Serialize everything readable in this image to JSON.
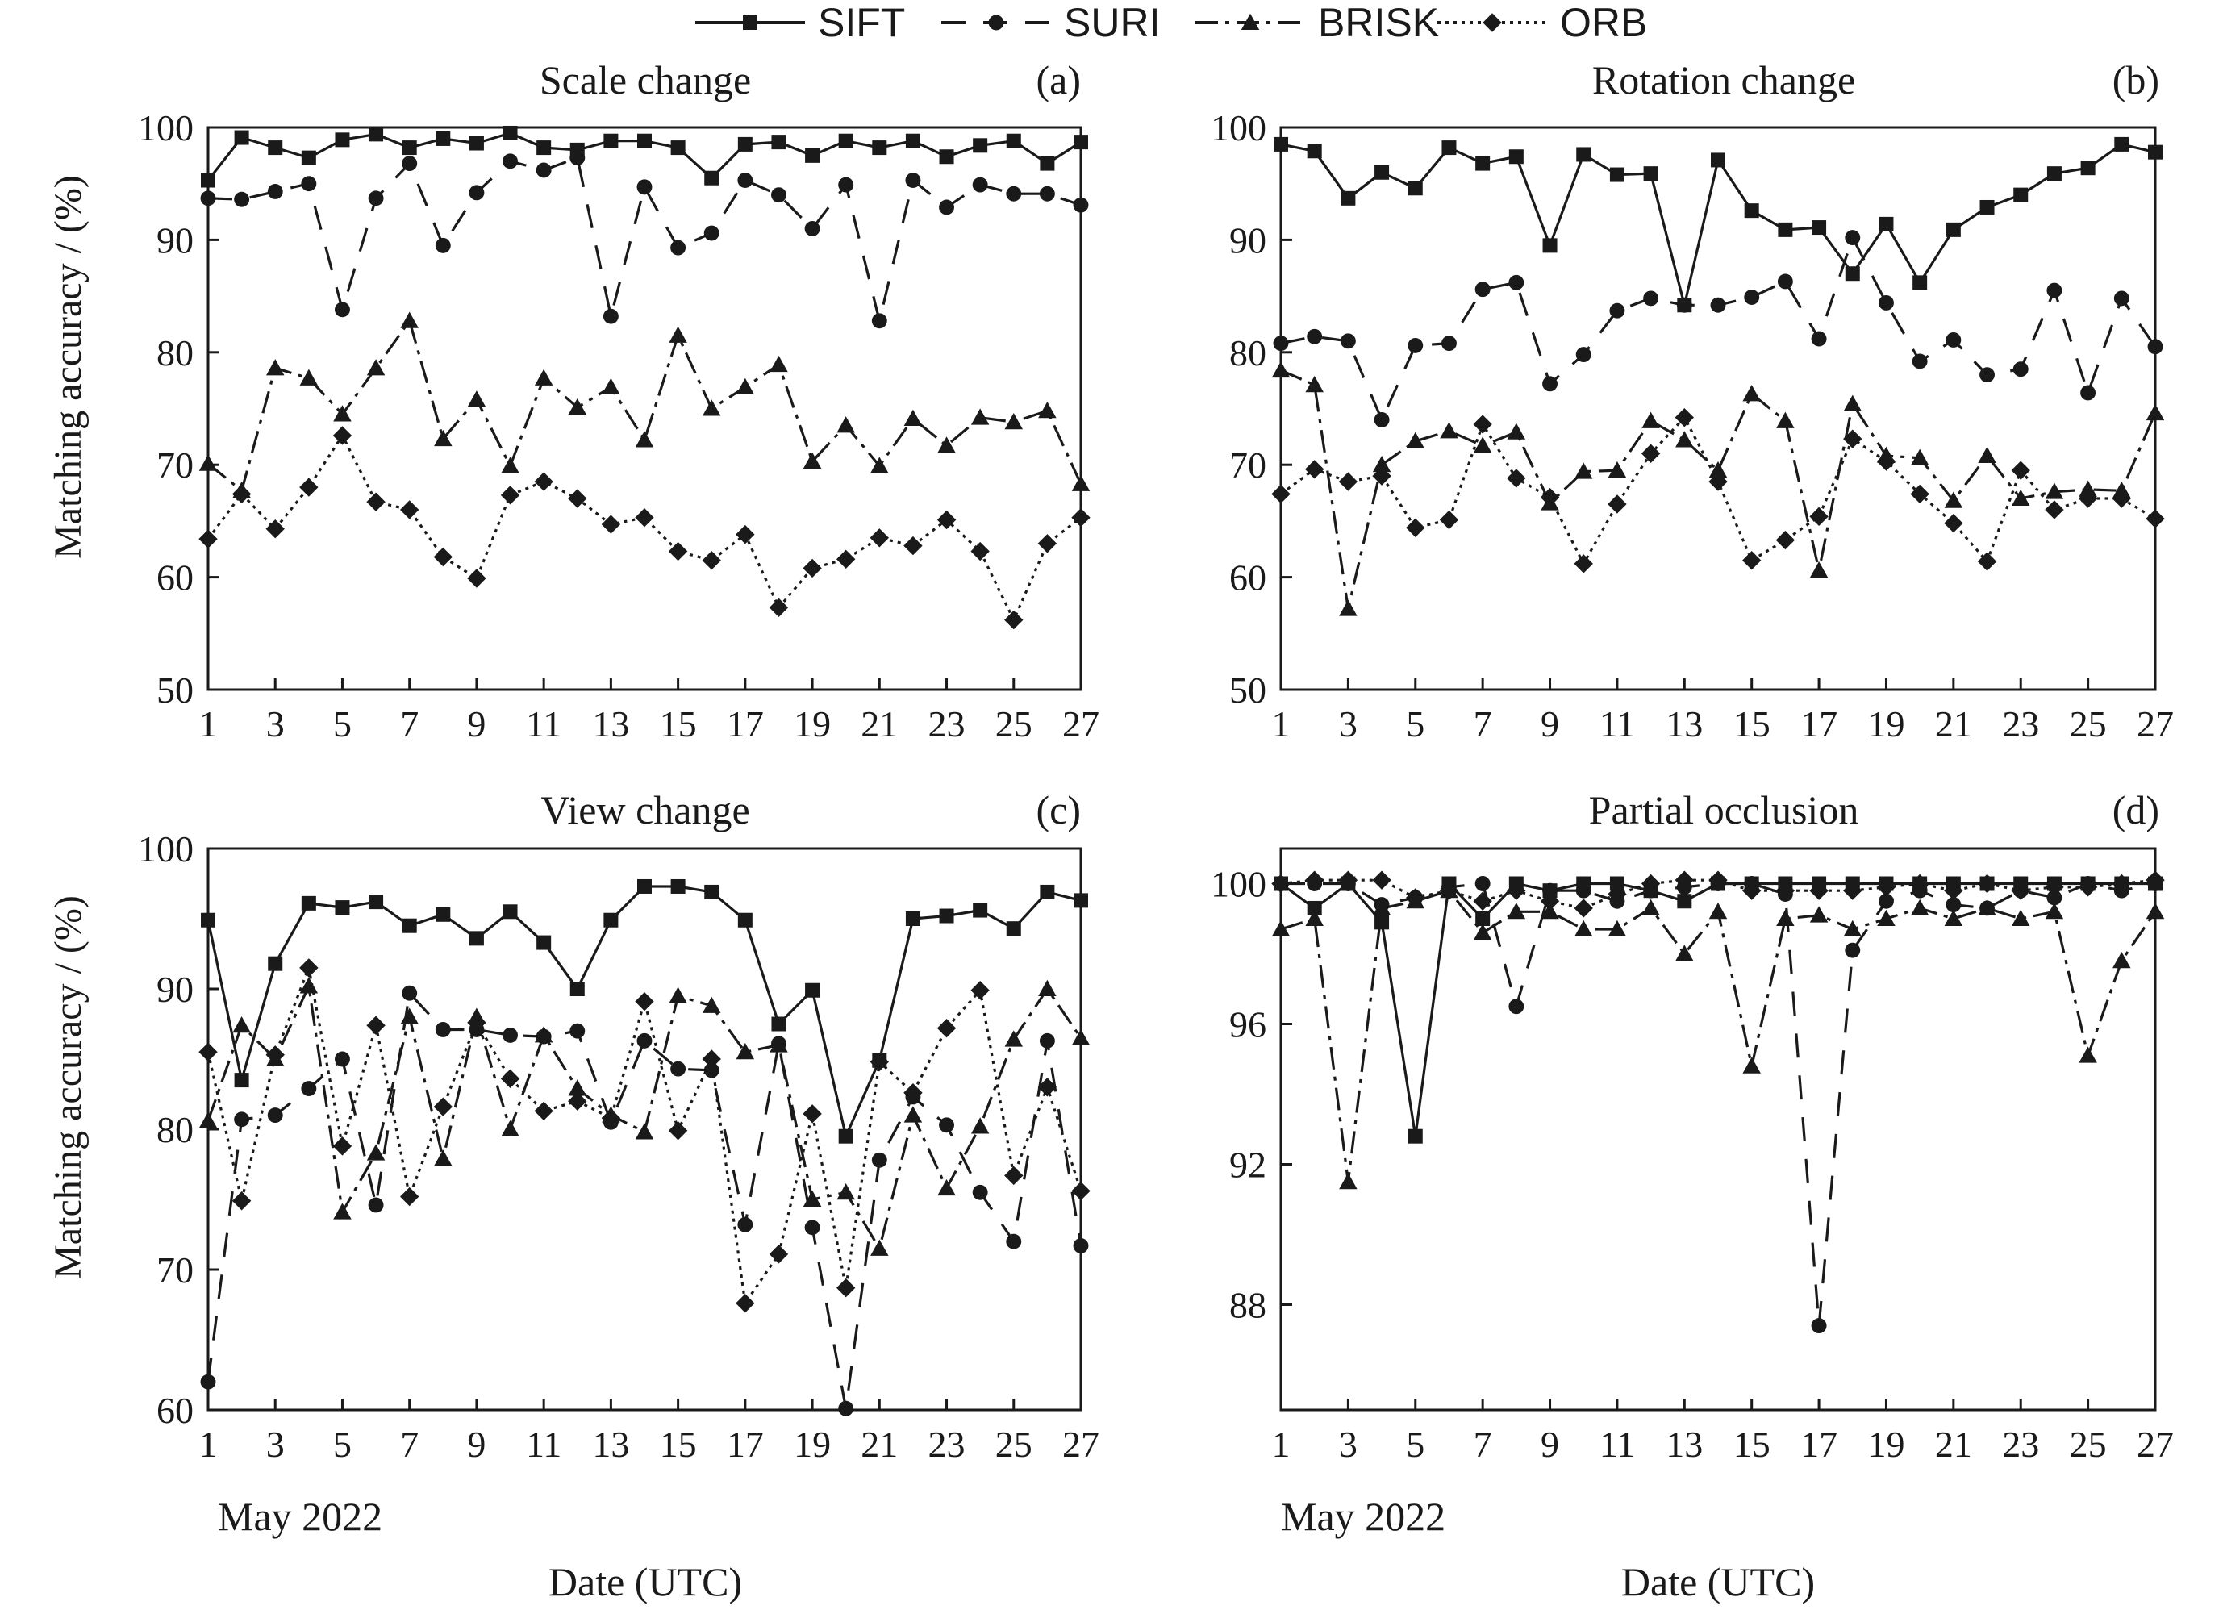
{
  "figure": {
    "ylabel": "Matching accuracy / (%)",
    "xlabel": "Date (UTC)",
    "date_note": "May 2022"
  },
  "legend": [
    {
      "name": "SIFT",
      "dash": "",
      "marker": "square"
    },
    {
      "name": "SURI",
      "dash": "30 22",
      "marker": "circle"
    },
    {
      "name": "BRISK",
      "dash": "28 9 5 9",
      "marker": "triangle"
    },
    {
      "name": "ORB",
      "dash": "4 6",
      "marker": "diamond"
    }
  ],
  "chart_data": [
    {
      "type": "line",
      "title": "Scale change",
      "panel_label": "(a)",
      "xlim": [
        1,
        27
      ],
      "ylim": [
        50,
        100
      ],
      "xticks": [
        1,
        3,
        5,
        7,
        9,
        11,
        13,
        15,
        17,
        19,
        21,
        23,
        25,
        27
      ],
      "yticks": [
        50,
        60,
        70,
        80,
        90,
        100
      ],
      "x": [
        1,
        2,
        3,
        4,
        5,
        6,
        7,
        8,
        9,
        10,
        11,
        12,
        13,
        14,
        15,
        16,
        17,
        18,
        19,
        20,
        21,
        22,
        23,
        24,
        25,
        26,
        27
      ],
      "series": [
        {
          "name": "SIFT",
          "values": [
            95.3,
            99.1,
            98.2,
            97.3,
            98.9,
            99.4,
            98.2,
            99.0,
            98.6,
            99.5,
            98.2,
            98.0,
            98.8,
            98.8,
            98.2,
            95.5,
            98.5,
            98.7,
            97.5,
            98.8,
            98.2,
            98.8,
            97.4,
            98.4,
            98.8,
            96.8,
            98.7
          ]
        },
        {
          "name": "SURI",
          "values": [
            93.7,
            93.6,
            94.3,
            95.0,
            83.8,
            93.7,
            96.8,
            89.5,
            94.2,
            97.0,
            96.2,
            97.3,
            83.2,
            94.7,
            89.3,
            90.6,
            95.3,
            94.0,
            91.0,
            94.9,
            82.8,
            95.3,
            92.9,
            94.9,
            94.1,
            94.1,
            93.1
          ]
        },
        {
          "name": "BRISK",
          "values": [
            70.1,
            67.7,
            78.6,
            77.7,
            74.5,
            78.6,
            82.8,
            72.3,
            75.8,
            69.9,
            77.7,
            75.1,
            76.9,
            72.2,
            81.5,
            75.0,
            76.9,
            78.9,
            70.3,
            73.5,
            69.9,
            74.1,
            71.7,
            74.2,
            73.8,
            74.8,
            68.3
          ]
        },
        {
          "name": "ORB",
          "values": [
            63.4,
            67.4,
            64.3,
            68.0,
            72.6,
            66.7,
            66.0,
            61.8,
            59.9,
            67.3,
            68.5,
            67.0,
            64.7,
            65.3,
            62.3,
            61.5,
            63.8,
            57.3,
            60.8,
            61.6,
            63.5,
            62.8,
            65.1,
            62.3,
            56.2,
            63.0,
            65.3
          ]
        }
      ]
    },
    {
      "type": "line",
      "title": "Rotation change",
      "panel_label": "(b)",
      "xlim": [
        1,
        27
      ],
      "ylim": [
        50,
        100
      ],
      "xticks": [
        1,
        3,
        5,
        7,
        9,
        11,
        13,
        15,
        17,
        19,
        21,
        23,
        25,
        27
      ],
      "yticks": [
        50,
        60,
        70,
        80,
        90,
        100
      ],
      "x": [
        1,
        2,
        3,
        4,
        5,
        6,
        7,
        8,
        9,
        10,
        11,
        12,
        13,
        14,
        15,
        16,
        17,
        18,
        19,
        20,
        21,
        22,
        23,
        24,
        25,
        26,
        27
      ],
      "series": [
        {
          "name": "SIFT",
          "values": [
            98.5,
            97.9,
            93.7,
            96.0,
            94.6,
            98.2,
            96.8,
            97.4,
            89.5,
            97.6,
            95.8,
            95.9,
            84.2,
            97.1,
            92.6,
            90.9,
            91.1,
            87.0,
            91.4,
            86.2,
            90.9,
            92.9,
            94.0,
            95.9,
            96.4,
            98.5,
            97.8
          ]
        },
        {
          "name": "SURI",
          "values": [
            80.8,
            81.4,
            81.0,
            74.0,
            80.6,
            80.8,
            85.6,
            86.2,
            77.2,
            79.8,
            83.7,
            84.8,
            84.2,
            84.2,
            84.9,
            86.3,
            81.2,
            90.2,
            84.4,
            79.2,
            81.1,
            78.0,
            78.5,
            85.5,
            76.4,
            84.8,
            80.5
          ]
        },
        {
          "name": "BRISK",
          "values": [
            78.4,
            77.1,
            57.2,
            70.0,
            72.1,
            73.0,
            71.7,
            72.9,
            66.6,
            69.4,
            69.5,
            73.9,
            72.2,
            69.5,
            76.3,
            73.9,
            60.6,
            75.4,
            70.8,
            70.6,
            66.8,
            70.8,
            67.0,
            67.6,
            67.8,
            67.7,
            74.6
          ]
        },
        {
          "name": "ORB",
          "values": [
            67.4,
            69.6,
            68.5,
            69.0,
            64.4,
            65.1,
            73.6,
            68.8,
            67.1,
            61.2,
            66.5,
            71.0,
            74.2,
            68.5,
            61.5,
            63.3,
            65.4,
            72.3,
            70.3,
            67.4,
            64.8,
            61.4,
            69.5,
            66.0,
            67.0,
            67.0,
            65.2
          ]
        }
      ]
    },
    {
      "type": "line",
      "title": "View change",
      "panel_label": "(c)",
      "xlim": [
        1,
        27
      ],
      "ylim": [
        60,
        100
      ],
      "xticks": [
        1,
        3,
        5,
        7,
        9,
        11,
        13,
        15,
        17,
        19,
        21,
        23,
        25,
        27
      ],
      "yticks": [
        60,
        70,
        80,
        90,
        100
      ],
      "x": [
        1,
        2,
        3,
        4,
        5,
        6,
        7,
        8,
        9,
        10,
        11,
        12,
        13,
        14,
        15,
        16,
        17,
        18,
        19,
        20,
        21,
        22,
        23,
        24,
        25,
        26,
        27
      ],
      "series": [
        {
          "name": "SIFT",
          "values": [
            94.9,
            83.5,
            91.8,
            96.1,
            95.8,
            96.2,
            94.5,
            95.3,
            93.6,
            95.5,
            93.3,
            90.0,
            94.9,
            97.3,
            97.3,
            96.9,
            94.9,
            87.5,
            89.9,
            79.5,
            84.9,
            95.0,
            95.2,
            95.6,
            94.3,
            96.9,
            96.3
          ]
        },
        {
          "name": "SURI",
          "values": [
            62.0,
            80.7,
            81.0,
            82.9,
            85.0,
            74.6,
            89.7,
            87.1,
            87.1,
            86.7,
            86.6,
            87.0,
            80.5,
            86.3,
            84.3,
            84.2,
            73.2,
            86.1,
            73.0,
            60.1,
            77.8,
            82.3,
            80.3,
            75.5,
            72.0,
            86.3,
            71.7
          ]
        },
        {
          "name": "BRISK",
          "values": [
            80.6,
            87.4,
            85.0,
            90.2,
            74.1,
            78.3,
            88.0,
            77.9,
            88.0,
            80.0,
            86.7,
            82.9,
            81.0,
            79.8,
            89.5,
            88.8,
            85.5,
            86.0,
            75.0,
            75.5,
            71.5,
            81.0,
            75.8,
            80.2,
            86.4,
            90.0,
            86.5
          ]
        },
        {
          "name": "ORB",
          "values": [
            85.5,
            74.9,
            85.3,
            91.5,
            78.8,
            87.4,
            75.2,
            81.6,
            87.6,
            83.6,
            81.3,
            82.0,
            80.8,
            89.1,
            79.9,
            85.0,
            67.6,
            71.1,
            81.1,
            68.7,
            84.8,
            82.6,
            87.2,
            89.9,
            76.7,
            83.0,
            75.6
          ]
        }
      ]
    },
    {
      "type": "line",
      "title": "Partial occlusion",
      "panel_label": "(d)",
      "xlim": [
        1,
        27
      ],
      "ylim": [
        85,
        101
      ],
      "xticks": [
        1,
        3,
        5,
        7,
        9,
        11,
        13,
        15,
        17,
        19,
        21,
        23,
        25,
        27
      ],
      "yticks": [
        88,
        92,
        96,
        100
      ],
      "x": [
        1,
        2,
        3,
        4,
        5,
        6,
        7,
        8,
        9,
        10,
        11,
        12,
        13,
        14,
        15,
        16,
        17,
        18,
        19,
        20,
        21,
        22,
        23,
        24,
        25,
        26,
        27
      ],
      "series": [
        {
          "name": "SIFT",
          "values": [
            100.0,
            99.3,
            100.0,
            98.9,
            92.8,
            100.0,
            99.0,
            100.0,
            99.8,
            100.0,
            100.0,
            99.8,
            99.5,
            100.0,
            100.0,
            100.0,
            100.0,
            100.0,
            100.0,
            100.0,
            100.0,
            100.0,
            100.0,
            100.0,
            100.0,
            100.0,
            100.0
          ]
        },
        {
          "name": "SURI",
          "values": [
            100.0,
            100.0,
            100.0,
            99.4,
            99.6,
            99.9,
            100.0,
            96.5,
            99.8,
            99.8,
            99.5,
            99.8,
            99.9,
            100.0,
            100.0,
            99.7,
            87.4,
            98.1,
            99.5,
            99.8,
            99.4,
            99.3,
            99.8,
            99.6,
            100.0,
            99.8,
            100.0
          ]
        },
        {
          "name": "BRISK",
          "values": [
            98.7,
            99.0,
            91.5,
            99.3,
            99.5,
            99.8,
            98.6,
            99.2,
            99.2,
            98.7,
            98.7,
            99.3,
            98.0,
            99.2,
            94.8,
            99.0,
            99.1,
            98.7,
            99.0,
            99.3,
            99.0,
            99.3,
            99.0,
            99.2,
            95.1,
            97.8,
            99.2
          ]
        },
        {
          "name": "ORB",
          "values": [
            100.0,
            100.1,
            100.1,
            100.1,
            99.6,
            99.8,
            99.5,
            99.8,
            99.5,
            99.3,
            99.7,
            100.0,
            100.1,
            100.1,
            99.8,
            99.8,
            99.8,
            99.8,
            99.9,
            100.0,
            99.8,
            100.0,
            99.8,
            99.9,
            99.9,
            100.0,
            100.1
          ]
        }
      ]
    }
  ]
}
